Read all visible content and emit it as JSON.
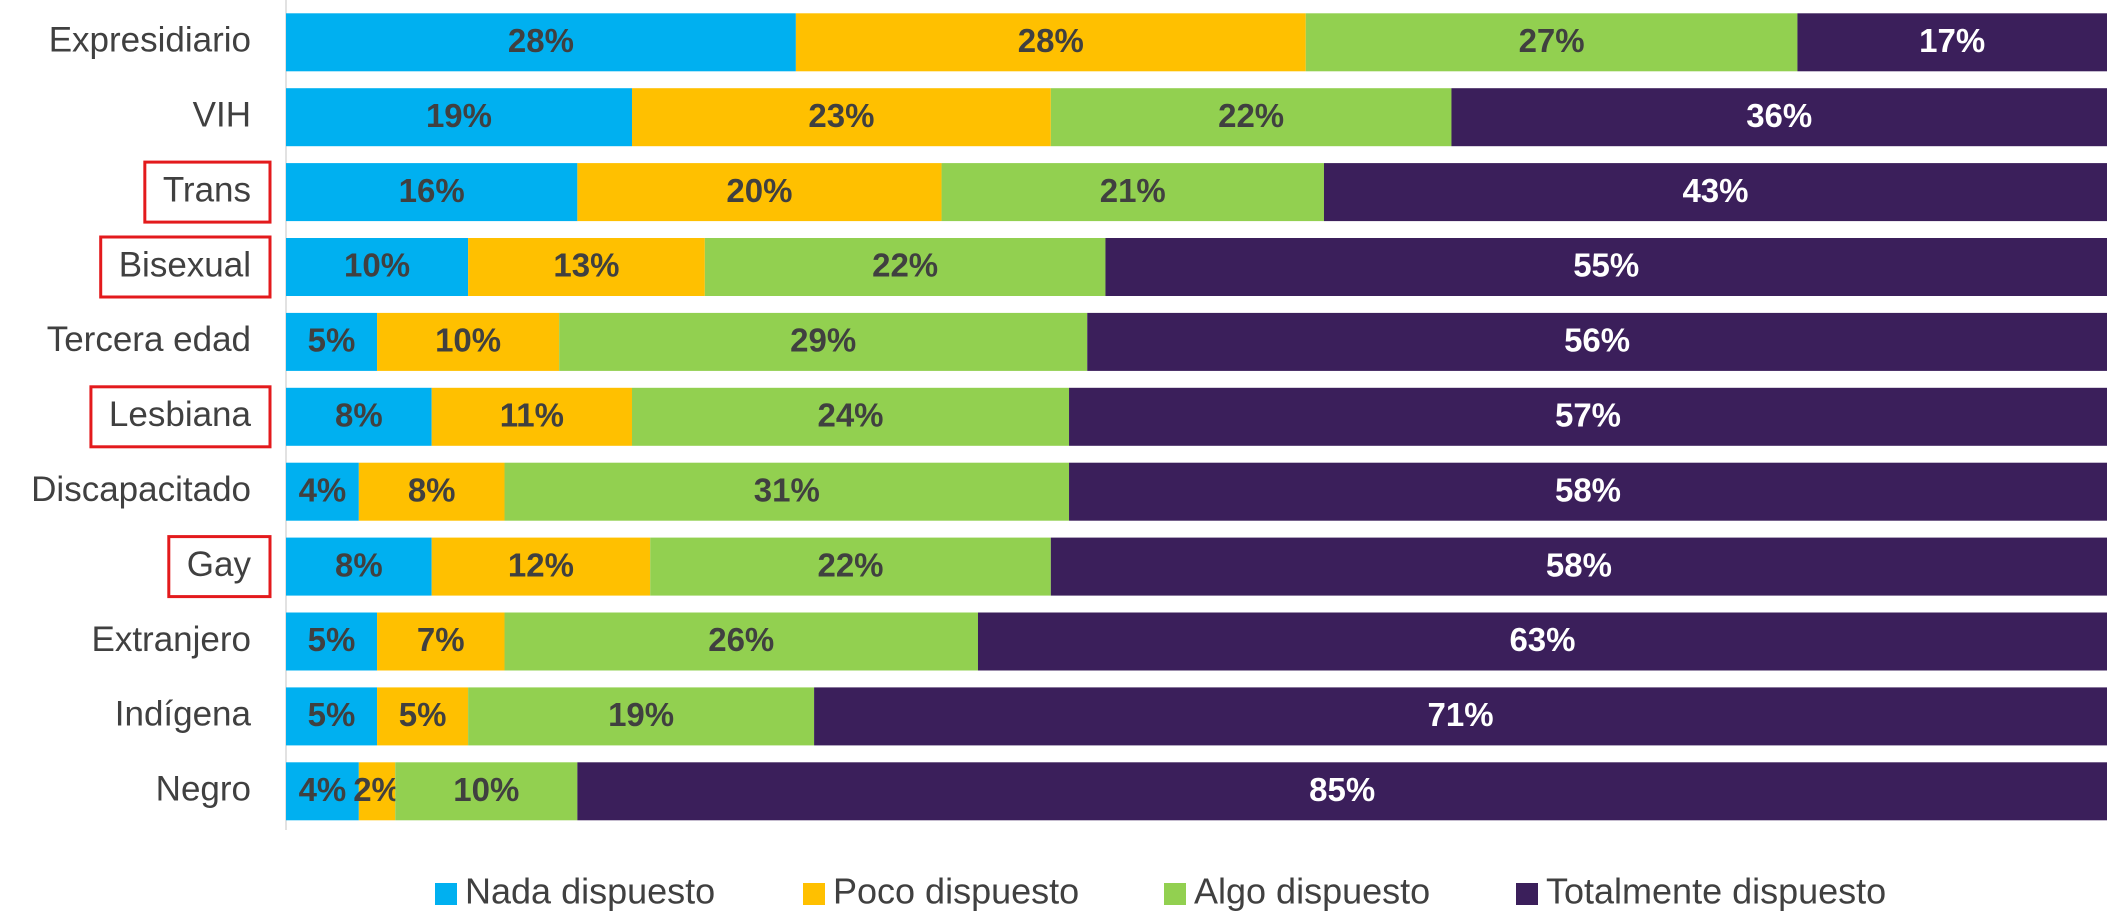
{
  "chart_data": {
    "type": "stacked-bar-horizontal",
    "categories": [
      "Expresidiario",
      "VIH",
      "Trans",
      "Bisexual",
      "Tercera edad",
      "Lesbiana",
      "Discapacitado",
      "Gay",
      "Extranjero",
      "Indígena",
      "Negro"
    ],
    "xlim": [
      0,
      100
    ],
    "highlight": [
      2,
      3,
      5,
      7
    ],
    "highlight_color": "#e31a1c",
    "series": [
      {
        "name": "Nada dispuesto",
        "color": "#00b0f0",
        "label_color": "#404040",
        "values": [
          28,
          19,
          16,
          10,
          5,
          8,
          4,
          8,
          5,
          5,
          4
        ],
        "value_labels": [
          "28%",
          "19%",
          "16%",
          "10%",
          "5%",
          "8%",
          "4%",
          "8%",
          "5%",
          "5%",
          "4%"
        ]
      },
      {
        "name": "Poco dispuesto",
        "color": "#ffc000",
        "label_color": "#404040",
        "values": [
          28,
          23,
          20,
          13,
          10,
          11,
          8,
          12,
          7,
          5,
          2
        ],
        "value_labels": [
          "28%",
          "23%",
          "20%",
          "13%",
          "10%",
          "11%",
          "8%",
          "12%",
          "7%",
          "5%",
          "2%"
        ]
      },
      {
        "name": "Algo dispuesto",
        "color": "#92d050",
        "label_color": "#404040",
        "values": [
          27,
          22,
          21,
          22,
          29,
          24,
          31,
          22,
          26,
          19,
          10
        ],
        "value_labels": [
          "27%",
          "22%",
          "21%",
          "22%",
          "29%",
          "24%",
          "31%",
          "22%",
          "26%",
          "19%",
          "10%"
        ]
      },
      {
        "name": "Totalmente dispuesto",
        "color": "#3b1f5b",
        "label_color": "#ffffff",
        "values": [
          17,
          36,
          43,
          55,
          56,
          57,
          58,
          58,
          63,
          71,
          85
        ],
        "value_labels": [
          "17%",
          "36%",
          "43%",
          "55%",
          "56%",
          "57%",
          "58%",
          "58%",
          "63%",
          "71%",
          "85%"
        ]
      }
    ],
    "legend": "bottom"
  }
}
